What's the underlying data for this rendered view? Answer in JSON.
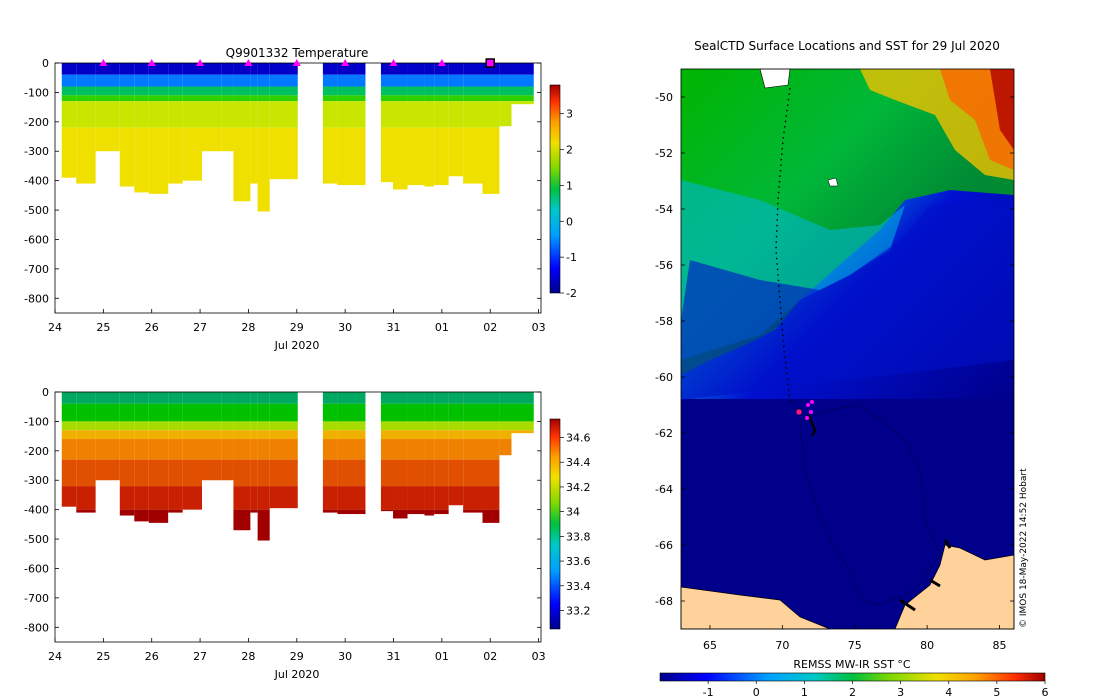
{
  "chart_data": [
    {
      "type": "heatmap",
      "title": "Q9901332  Temperature",
      "xlabel": "Jul 2020",
      "x_ticks": [
        "24",
        "25",
        "26",
        "27",
        "28",
        "29",
        "30",
        "31",
        "01",
        "02",
        "03"
      ],
      "y_ticks": [
        "0",
        "-100",
        "-200",
        "-300",
        "-400",
        "-500",
        "-600",
        "-700",
        "-800"
      ],
      "ylim": [
        -850,
        0
      ],
      "colorbar_ticks": [
        "3",
        "2",
        "1",
        "0",
        "-1",
        "-2"
      ],
      "colorbar_range": [
        -2,
        3.8
      ],
      "colors": [
        "#00008b",
        "#0000ff",
        "#00bfff",
        "#00c060",
        "#00d000",
        "#c8e600",
        "#f0e000",
        "#ffa000",
        "#ff4000",
        "#a00000"
      ],
      "profiles": [
        {
          "day": 24.3,
          "bottom": -390
        },
        {
          "day": 24.6,
          "bottom": -410
        },
        {
          "day": 25.0,
          "bottom": -300
        },
        {
          "day": 25.5,
          "bottom": -420
        },
        {
          "day": 25.8,
          "bottom": -440
        },
        {
          "day": 26.1,
          "bottom": -445
        },
        {
          "day": 26.5,
          "bottom": -410
        },
        {
          "day": 26.8,
          "bottom": -400
        },
        {
          "day": 27.2,
          "bottom": -300
        },
        {
          "day": 27.6,
          "bottom": -300
        },
        {
          "day": 27.85,
          "bottom": -470
        },
        {
          "day": 28.2,
          "bottom": -410
        },
        {
          "day": 28.35,
          "bottom": -505
        },
        {
          "day": 28.6,
          "bottom": -395
        },
        {
          "day": 29.7,
          "bottom": -410
        },
        {
          "day": 30.0,
          "bottom": -415
        },
        {
          "day": 30.9,
          "bottom": -405
        },
        {
          "day": 31.15,
          "bottom": -430
        },
        {
          "day": 31.45,
          "bottom": -415
        },
        {
          "day": 31.8,
          "bottom": -420
        },
        {
          "day": 32.0,
          "bottom": -415
        },
        {
          "day": 32.3,
          "bottom": -385
        },
        {
          "day": 32.6,
          "bottom": -410
        },
        {
          "day": 33.0,
          "bottom": -445
        },
        {
          "day": 33.35,
          "bottom": -215
        },
        {
          "day": 33.6,
          "bottom": -140
        }
      ]
    },
    {
      "type": "heatmap",
      "title": "",
      "xlabel": "Jul 2020",
      "x_ticks": [
        "24",
        "25",
        "26",
        "27",
        "28",
        "29",
        "30",
        "31",
        "01",
        "02",
        "03"
      ],
      "y_ticks": [
        "0",
        "-100",
        "-200",
        "-300",
        "-400",
        "-500",
        "-600",
        "-700",
        "-800"
      ],
      "ylim": [
        -850,
        0
      ],
      "colorbar_ticks": [
        "34.6",
        "34.4",
        "34.2",
        "34",
        "33.8",
        "33.6",
        "33.4",
        "33.2"
      ],
      "colorbar_range": [
        33.05,
        34.75
      ]
    },
    {
      "type": "heatmap",
      "title": "SealCTD Surface Locations and SST for 29 Jul 2020",
      "x_ticks": [
        "65",
        "70",
        "75",
        "80",
        "85"
      ],
      "y_ticks": [
        "-50",
        "-52",
        "-54",
        "-56",
        "-58",
        "-60",
        "-62",
        "-64",
        "-66",
        "-68"
      ],
      "xlim": [
        63,
        86
      ],
      "ylim": [
        -69,
        -49
      ],
      "colorbar_label": "REMSS MW-IR SST °C",
      "colorbar_ticks": [
        "-1",
        "0",
        "1",
        "2",
        "3",
        "4",
        "5",
        "6"
      ],
      "colorbar_range": [
        -2,
        6
      ],
      "credit": "© IMOS 18-May-2022 14:52 Hobart"
    }
  ]
}
